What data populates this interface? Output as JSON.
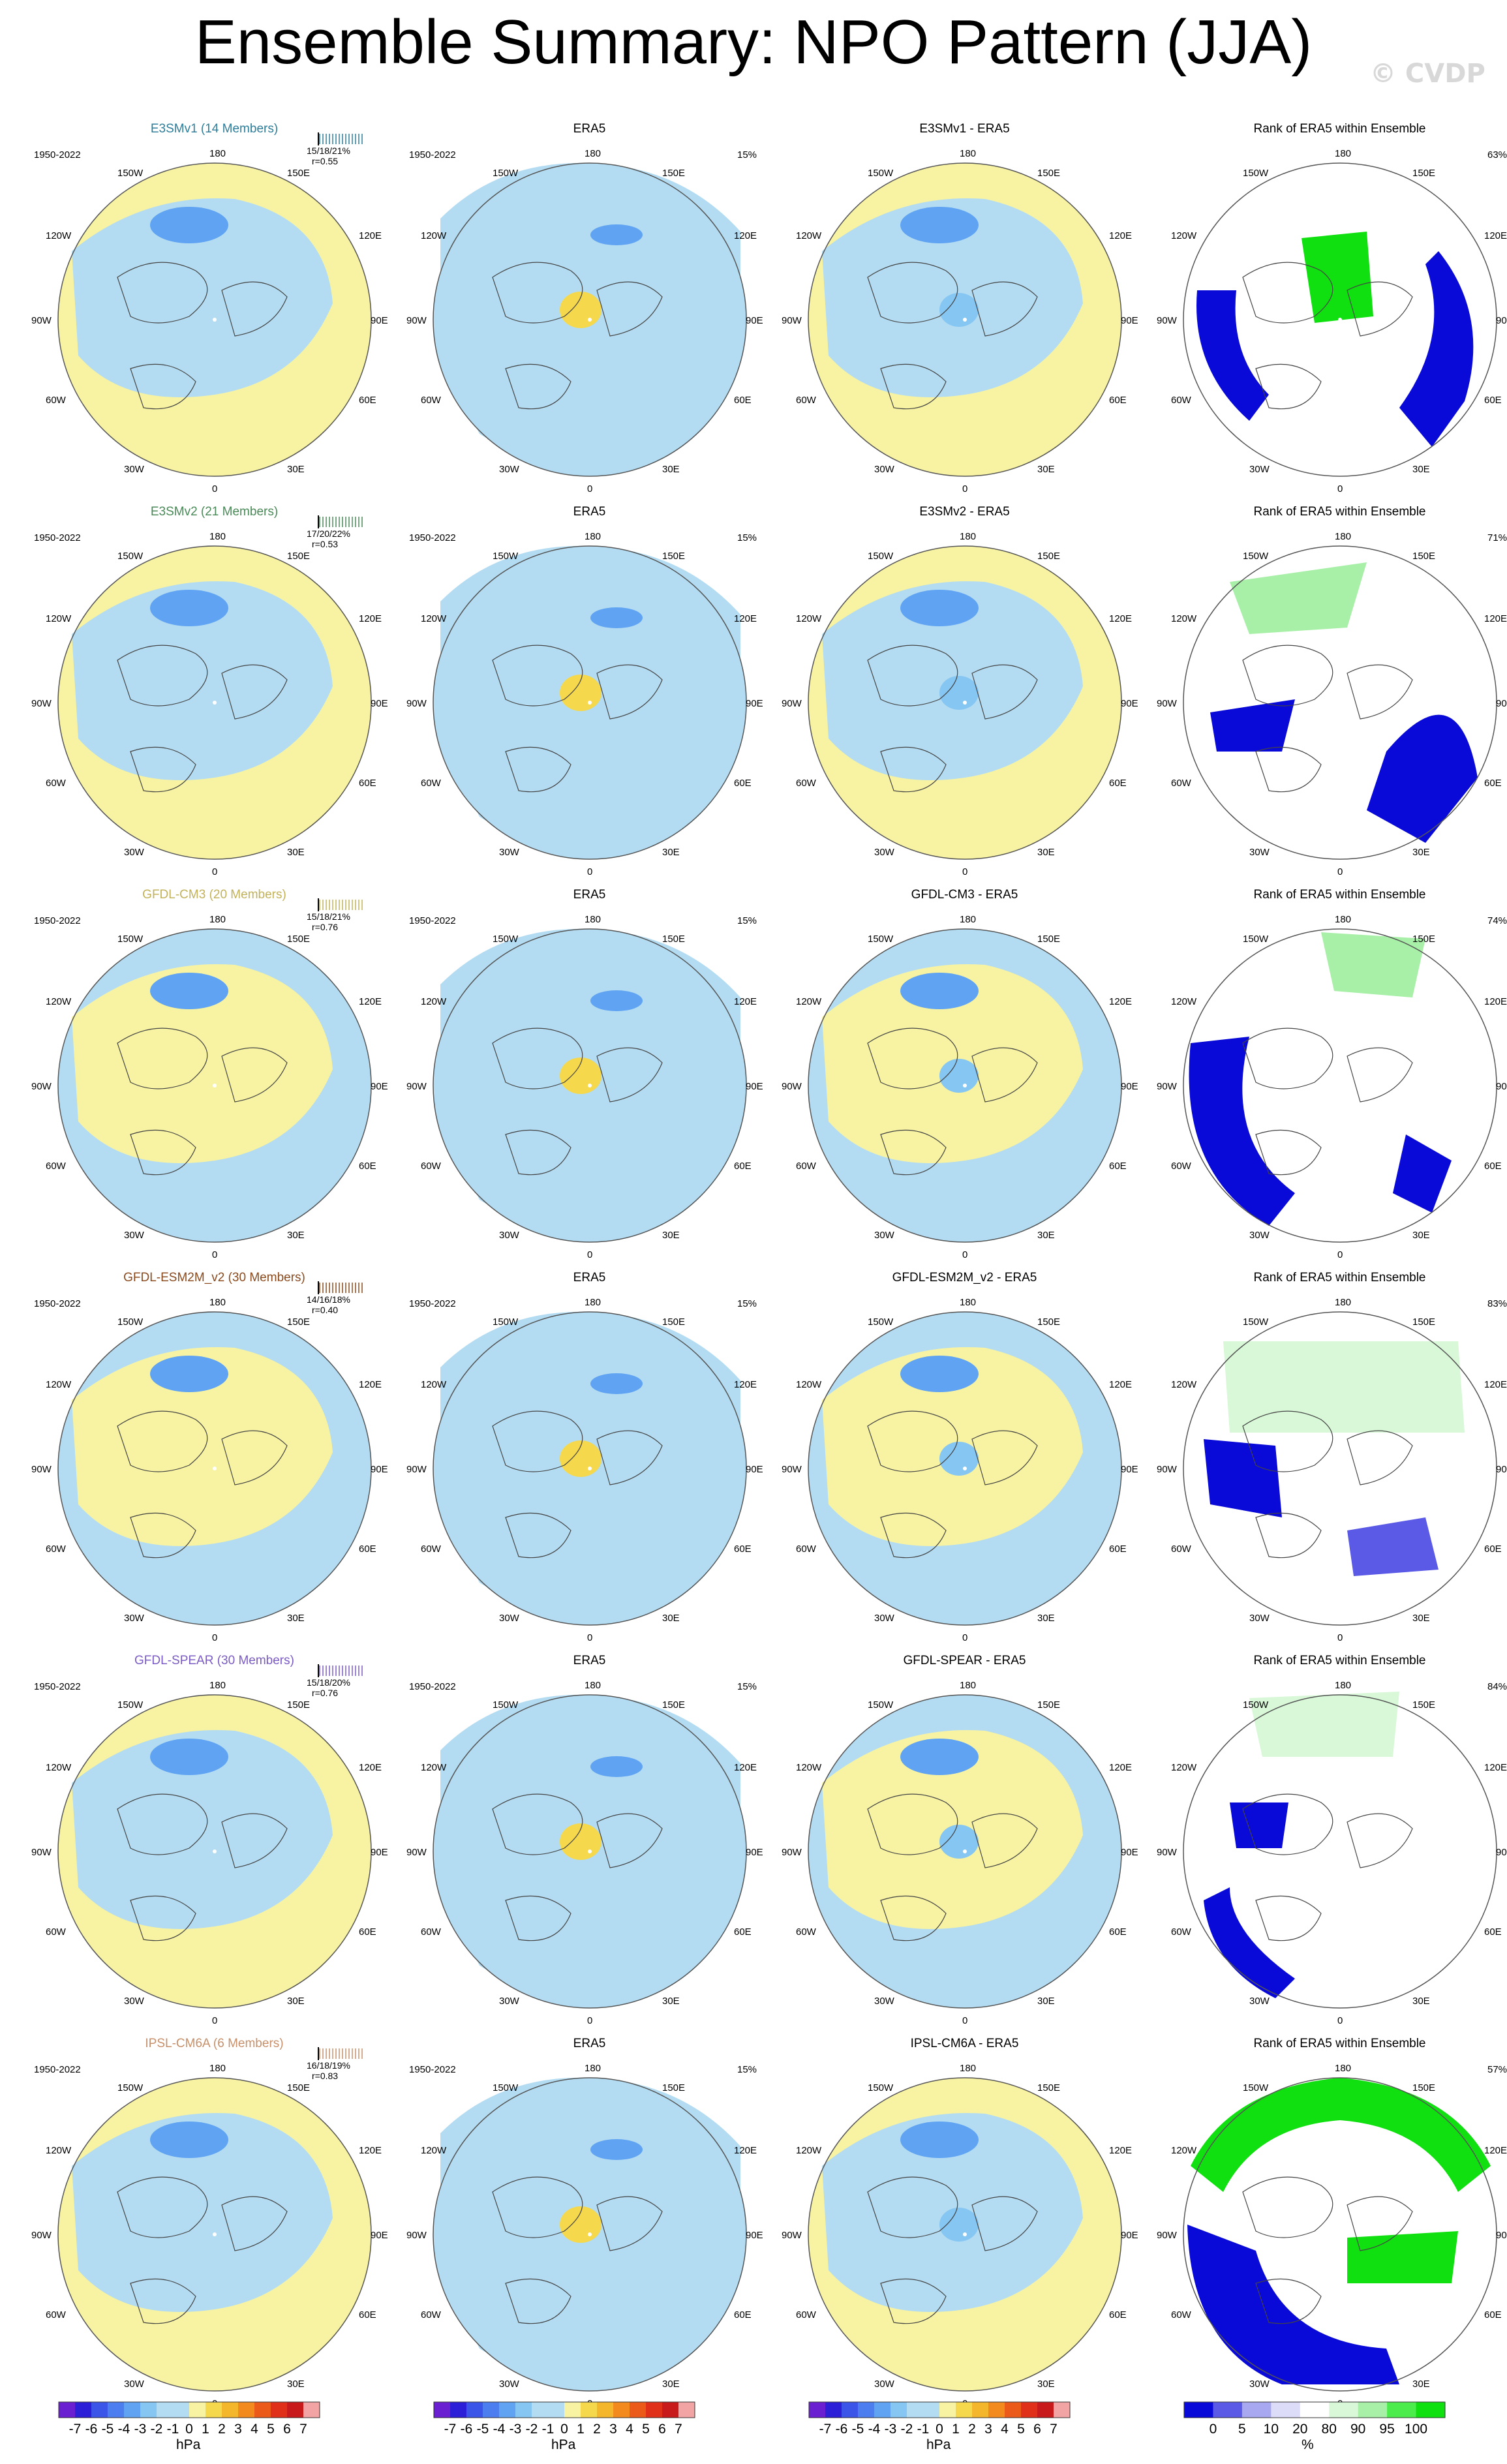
{
  "title": "Ensemble Summary: NPO Pattern (JJA)",
  "watermark": "© CVDP",
  "years": "1950-2022",
  "era5_pct": "15%",
  "coord_labels": {
    "top": "180",
    "top_left": "150W",
    "top_right": "150E",
    "upper_left": "120W",
    "upper_right": "120E",
    "left": "90W",
    "right": "90E",
    "lower_left": "60W",
    "lower_right": "60E",
    "bottom_left": "30W",
    "bottom_right": "30E",
    "bottom": "0"
  },
  "rows": [
    {
      "model_title": "E3SMv1 (14 Members)",
      "title_color": "#2e7d9a",
      "stat": "15/18/21%",
      "r": "r=0.55",
      "era5_title": "ERA5",
      "diff_title": "E3SMv1 - ERA5",
      "rank_title": "Rank of ERA5 within Ensemble",
      "rank_pct": "63%"
    },
    {
      "model_title": "E3SMv2 (21 Members)",
      "title_color": "#4a8a58",
      "stat": "17/20/22%",
      "r": "r=0.53",
      "era5_title": "ERA5",
      "diff_title": "E3SMv2 - ERA5",
      "rank_title": "Rank of ERA5 within Ensemble",
      "rank_pct": "71%"
    },
    {
      "model_title": "GFDL-CM3 (20 Members)",
      "title_color": "#c2b25a",
      "stat": "15/18/21%",
      "r": "r=0.76",
      "era5_title": "ERA5",
      "diff_title": "GFDL-CM3 - ERA5",
      "rank_title": "Rank of ERA5 within Ensemble",
      "rank_pct": "74%"
    },
    {
      "model_title": "GFDL-ESM2M_v2 (30 Members)",
      "title_color": "#8b4a1e",
      "stat": "14/16/18%",
      "r": "r=0.40",
      "era5_title": "ERA5",
      "diff_title": "GFDL-ESM2M_v2 - ERA5",
      "rank_title": "Rank of ERA5 within Ensemble",
      "rank_pct": "83%"
    },
    {
      "model_title": "GFDL-SPEAR (30 Members)",
      "title_color": "#7b5cc4",
      "stat": "15/18/20%",
      "r": "r=0.76",
      "era5_title": "ERA5",
      "diff_title": "GFDL-SPEAR - ERA5",
      "rank_title": "Rank of ERA5 within Ensemble",
      "rank_pct": "84%"
    },
    {
      "model_title": "IPSL-CM6A (6 Members)",
      "title_color": "#c8906a",
      "stat": "16/18/19%",
      "r": "r=0.83",
      "era5_title": "ERA5",
      "diff_title": "IPSL-CM6A - ERA5",
      "rank_title": "Rank of ERA5 within Ensemble",
      "rank_pct": "57%"
    }
  ],
  "colorbars": {
    "hpa": {
      "labels": [
        "-7",
        "-6",
        "-5",
        "-4",
        "-3",
        "-2",
        "-1",
        "0",
        "1",
        "2",
        "3",
        "4",
        "5",
        "6",
        "7"
      ],
      "unit": "hPa",
      "colors": [
        "#6a1fd1",
        "#2b1fd8",
        "#3a55e8",
        "#4d7ef0",
        "#5fa3f2",
        "#86c6f2",
        "#b3dcf2",
        "#b3dcf2",
        "#f7f3a3",
        "#f5d84c",
        "#f4b62a",
        "#f28a1e",
        "#ec5a1a",
        "#e0301a",
        "#c81a1a",
        "#f2a3a3"
      ]
    },
    "rank": {
      "labels": [
        "0",
        "5",
        "10",
        "20",
        "80",
        "90",
        "95",
        "100"
      ],
      "unit": "%",
      "colors": [
        "#0a0ad8",
        "#5a5ae6",
        "#a8a8f0",
        "#dcdcf8",
        "#ffffff",
        "#d8f8d8",
        "#a8f0a8",
        "#4cec4c",
        "#10e010"
      ]
    }
  }
}
